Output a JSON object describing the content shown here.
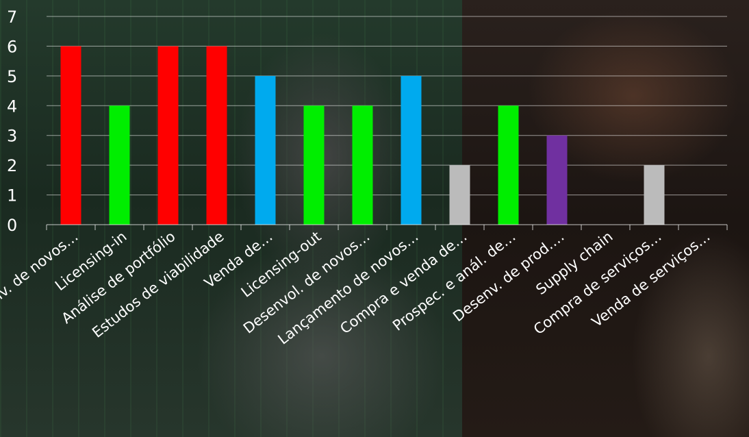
{
  "chart_data": {
    "type": "bar",
    "categories": [
      "Desenv. de novos…",
      "Licensing-in",
      "Análise de portfólio",
      "Estudos de viabilidade",
      "Venda de…",
      "Licensing-out",
      "Desenvol. de novos…",
      "Lançamento de novos…",
      "Compra e venda de…",
      "Prospec. e anál. de…",
      "Desenv. de prod.…",
      "Supply chain",
      "Compra de serviços…",
      "Venda de serviços…"
    ],
    "values": [
      6,
      4,
      6,
      6,
      5,
      4,
      4,
      5,
      2,
      4,
      3,
      0,
      2,
      0
    ],
    "colors": [
      "#ff0000",
      "#00ee00",
      "#ff0000",
      "#ff0000",
      "#00aaee",
      "#00ee00",
      "#00ee00",
      "#00aaee",
      "#bbbbbb",
      "#00ee00",
      "#7030a0",
      "#bbbbbb",
      "#bbbbbb",
      "#bbbbbb"
    ],
    "yticks": [
      0,
      1,
      2,
      3,
      4,
      5,
      6,
      7
    ],
    "ylim": [
      0,
      7
    ],
    "grid": true,
    "title": "",
    "xlabel": "",
    "ylabel": ""
  }
}
